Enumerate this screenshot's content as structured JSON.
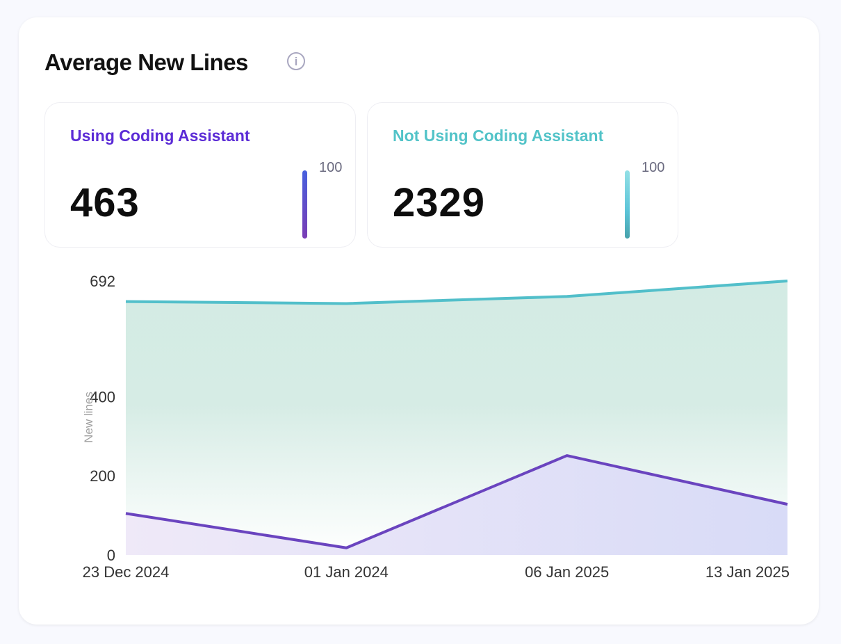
{
  "header": {
    "title": "Average New Lines",
    "info_icon": "info-icon"
  },
  "stats": [
    {
      "label": "Using Coding Assistant",
      "value": "463",
      "scale_max": "100",
      "color": "#5b2bd6"
    },
    {
      "label": "Not Using Coding Assistant",
      "value": "2329",
      "scale_max": "100",
      "color": "#52c3c8"
    }
  ],
  "chart_data": {
    "type": "area",
    "categories": [
      "23 Dec 2024",
      "01 Jan 2024",
      "06 Jan 2025",
      "13 Jan 2025"
    ],
    "series": [
      {
        "values": [
          640,
          635,
          653,
          692
        ],
        "color": "#52bfca"
      },
      {
        "values": [
          105,
          18,
          251,
          128
        ],
        "color": "#6a44bf"
      }
    ],
    "ylabel": "New lines",
    "yticks": [
      0,
      200,
      400,
      692
    ],
    "ylim": [
      0,
      692
    ],
    "grid": false
  }
}
